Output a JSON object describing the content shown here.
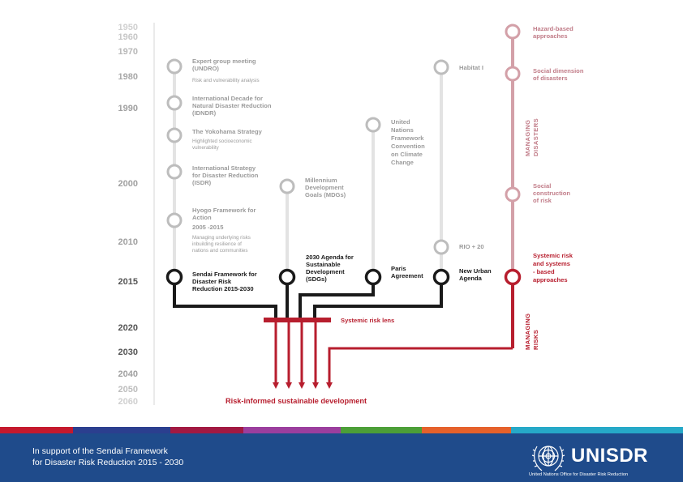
{
  "years": {
    "y1950": "1950",
    "y1960": "1960",
    "y1970": "1970",
    "y1980": "1980",
    "y1990": "1990",
    "y2000": "2000",
    "y2010": "2010",
    "y2015": "2015",
    "y2020": "2020",
    "y2030": "2030",
    "y2040": "2040",
    "y2050": "2050",
    "y2060": "2060"
  },
  "sendai_track": {
    "expert": {
      "title": [
        "Expert group meeting",
        "(UNDRO)"
      ],
      "sub": [
        "Risk and vulnerability analysis"
      ]
    },
    "idndr": {
      "title": [
        "International Decade for",
        "Natural Disaster Reduction",
        "(IDNDR)"
      ]
    },
    "yokohama": {
      "title": [
        "The Yokohama Strategy"
      ],
      "sub": [
        "Highlighted socioeconomic",
        "vulnerability"
      ]
    },
    "isdr": {
      "title": [
        "International Strategy",
        "for Disaster Reduction",
        "(ISDR)"
      ]
    },
    "hyogo": {
      "title": [
        "Hyogo Framework for",
        "Action",
        "2005 -2015"
      ],
      "sub": [
        "Managing underlying risks",
        "inbuilding resilience of",
        "nations and communities"
      ]
    },
    "sendai": {
      "title": [
        "Sendai Framework for",
        "Disaster Risk",
        "Reduction 2015-2030"
      ]
    }
  },
  "sdg_track": {
    "mdgs": {
      "title": [
        "Millennium",
        "Development",
        "Goals (MDGs)"
      ]
    },
    "agenda": {
      "title": [
        "2030 Agenda for",
        "Sustainable",
        "Development",
        "(SDGs)"
      ]
    }
  },
  "climate_track": {
    "unfccc": {
      "title": [
        "United",
        "Nations",
        "Framework",
        "Convention",
        "on Climate",
        "Change"
      ]
    },
    "paris": {
      "title": [
        "Paris",
        "Agreement"
      ]
    }
  },
  "habitat_track": {
    "habitat": {
      "title": [
        "Habitat I"
      ]
    },
    "rio": {
      "title": [
        "RIO + 20"
      ]
    },
    "newurban": {
      "title": [
        "New Urban",
        "Agenda"
      ]
    }
  },
  "risk_track": {
    "hazard": {
      "title": [
        "Hazard-based",
        "approaches"
      ]
    },
    "social_dim": {
      "title": [
        "Social dimension",
        "of disasters"
      ]
    },
    "social_con": {
      "title": [
        "Social",
        "construction",
        "of risk"
      ]
    },
    "systemic": {
      "title": [
        "Systemic risk",
        "and systems",
        "- based",
        "approaches"
      ]
    },
    "managing_disasters": [
      "MANAGING",
      "DISASTERS"
    ],
    "managing_risks": [
      "MANAGING",
      "RISKS"
    ]
  },
  "lens_label": "Systemic risk lens",
  "outcome_label": "Risk-informed sustainable development",
  "footer": {
    "tagline_line1": "In support of the Sendai Framework",
    "tagline_line2": "for Disaster Risk Reduction 2015 - 2030",
    "org_name": "UNISDR",
    "org_full": "United Nations Office for Disaster Risk Reduction"
  },
  "colors": {
    "gray_line": "#e3e3e3",
    "gray_circle": "#bdbdbd",
    "gray_text": "#9b9b9b",
    "year_faint": "#d0d0d0",
    "pink": "#d3a0a8",
    "pink_text": "#c17c88",
    "red": "#b71e2e",
    "black": "#1a1a1a",
    "footer_blue": "#1f4b8b",
    "stripe": [
      "#c5192d",
      "#2b3f8f",
      "#e5243b",
      "#a21942",
      "#ff3a21",
      "#26bde2",
      "#fcc30b",
      "#00689d"
    ]
  }
}
